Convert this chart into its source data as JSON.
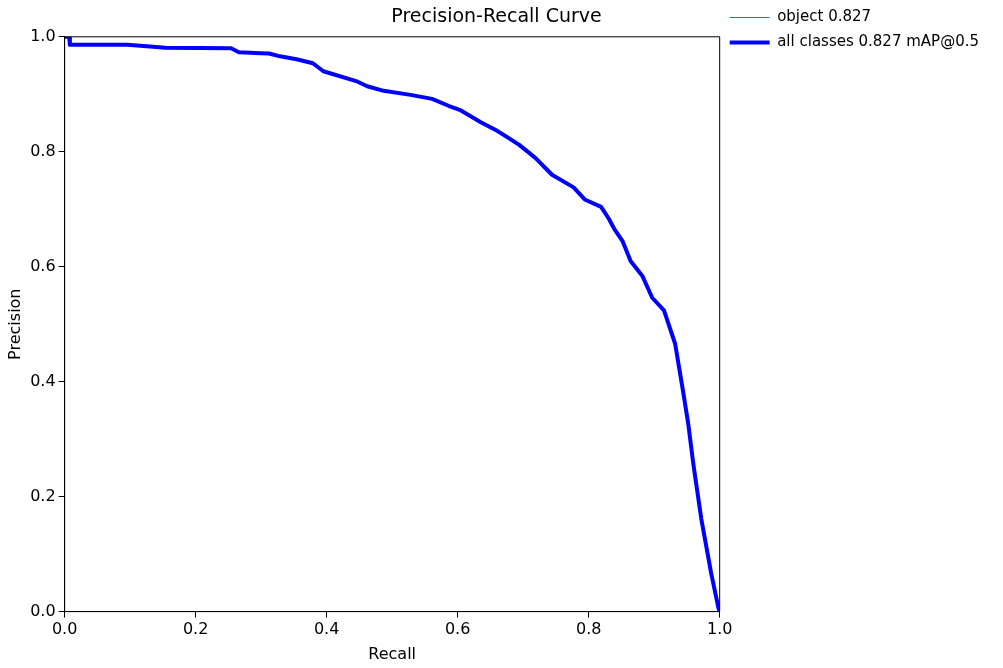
{
  "chart_data": {
    "type": "line",
    "title": "Precision-Recall Curve",
    "xlabel": "Recall",
    "ylabel": "Precision",
    "x": [
      0,
      0.007,
      0.008,
      0.096,
      0.13,
      0.154,
      0.254,
      0.266,
      0.312,
      0.329,
      0.354,
      0.379,
      0.395,
      0.445,
      0.462,
      0.487,
      0.528,
      0.561,
      0.586,
      0.603,
      0.636,
      0.661,
      0.694,
      0.719,
      0.744,
      0.777,
      0.794,
      0.819,
      0.831,
      0.839,
      0.852,
      0.864,
      0.882,
      0.897,
      0.915,
      0.932,
      0.944,
      0.952,
      0.96,
      0.972,
      0.987,
      0.998,
      1.0
    ],
    "series": [
      {
        "name": "object 0.827",
        "color": "#1f77b4",
        "values": [
          null,
          null,
          null,
          null,
          null,
          null,
          null,
          null,
          null,
          null,
          null,
          null,
          null,
          null,
          null,
          null,
          null,
          null,
          null,
          null,
          null,
          null,
          null,
          null,
          null,
          null,
          null,
          null,
          null,
          null,
          null,
          null,
          null,
          null,
          null,
          null,
          null,
          null,
          null,
          null,
          null,
          null,
          null
        ]
      },
      {
        "name": "all classes 0.827 mAP@0.5",
        "color": "#0000ff",
        "values": [
          1.0,
          1.0,
          0.986,
          0.986,
          0.983,
          0.981,
          0.98,
          0.973,
          0.971,
          0.966,
          0.961,
          0.954,
          0.94,
          0.923,
          0.914,
          0.906,
          0.899,
          0.892,
          0.88,
          0.873,
          0.851,
          0.836,
          0.812,
          0.789,
          0.76,
          0.738,
          0.717,
          0.704,
          0.683,
          0.666,
          0.644,
          0.61,
          0.584,
          0.546,
          0.524,
          0.466,
          0.384,
          0.327,
          0.255,
          0.161,
          0.067,
          0.007,
          0.0
        ]
      }
    ],
    "xlim": [
      0,
      1
    ],
    "ylim": [
      0,
      1
    ],
    "xticks": [
      {
        "value": 0,
        "label": "0.0"
      },
      0.2,
      0.4,
      0.6,
      0.8,
      {
        "value": 1,
        "label": "1.0"
      }
    ],
    "yticks": [
      {
        "value": 0,
        "label": "0.0"
      },
      0.2,
      0.4,
      0.6,
      0.8,
      {
        "value": 1,
        "label": "1.0"
      }
    ],
    "grid": false,
    "legend": "top right",
    "marker": "none",
    "line_style": "solid"
  }
}
